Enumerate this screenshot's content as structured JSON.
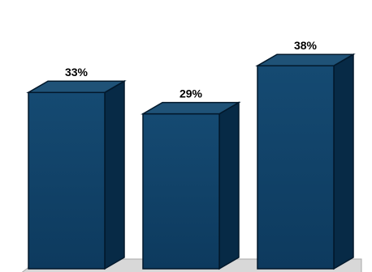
{
  "chart_data": {
    "type": "bar",
    "style": "3d-column",
    "categories": [
      "",
      "",
      ""
    ],
    "values": [
      33,
      29,
      38
    ],
    "data_labels": [
      "33%",
      "29%",
      "38%"
    ],
    "ylim": [
      0,
      40
    ],
    "grid": false,
    "legend": "none",
    "colors": {
      "bar_top": "#1f5277",
      "bar_front_top": "#154a72",
      "bar_front_bottom": "#0d3a5e",
      "bar_side": "#072a46",
      "outline": "#02182b",
      "floor": "#d8d8d8",
      "floor_edge": "#a9a9a9"
    }
  }
}
